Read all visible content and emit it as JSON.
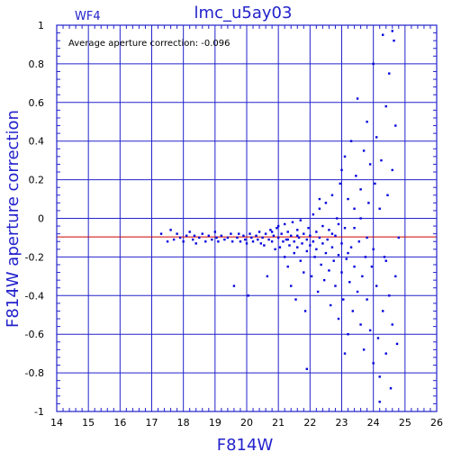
{
  "chart_data": {
    "type": "scatter",
    "title": "lmc_u5ay03",
    "subtitle": "WF4",
    "xlabel": "F814W",
    "ylabel": "F814W aperture correction",
    "annotation": "Average aperture correction:  -0.096",
    "xlim": [
      14,
      26
    ],
    "ylim": [
      -1,
      1
    ],
    "x_ticks": [
      "14",
      "15",
      "16",
      "17",
      "18",
      "19",
      "20",
      "21",
      "22",
      "23",
      "24",
      "25",
      "26"
    ],
    "y_ticks": [
      "1",
      "0.8",
      "0.6",
      "0.4",
      "0.2",
      "0",
      "-0.2",
      "-0.4",
      "-0.6",
      "-0.8",
      "-1"
    ],
    "grid": true,
    "reference_line": -0.096,
    "colors": {
      "axis": "#2222cc",
      "points": "#0000dd",
      "reference_line": "#cc0000",
      "text": "#000000"
    },
    "series": [
      {
        "points": [
          [
            17.3,
            -0.08
          ],
          [
            17.5,
            -0.12
          ],
          [
            17.6,
            -0.06
          ],
          [
            17.7,
            -0.11
          ],
          [
            17.8,
            -0.08
          ],
          [
            17.9,
            -0.1
          ],
          [
            18.0,
            -0.12
          ],
          [
            18.1,
            -0.09
          ],
          [
            18.2,
            -0.07
          ],
          [
            18.3,
            -0.11
          ],
          [
            18.35,
            -0.09
          ],
          [
            18.4,
            -0.13
          ],
          [
            18.5,
            -0.1
          ],
          [
            18.6,
            -0.08
          ],
          [
            18.7,
            -0.12
          ],
          [
            18.8,
            -0.09
          ],
          [
            18.9,
            -0.11
          ],
          [
            19.0,
            -0.07
          ],
          [
            19.05,
            -0.1
          ],
          [
            19.1,
            -0.12
          ],
          [
            19.2,
            -0.09
          ],
          [
            19.3,
            -0.11
          ],
          [
            19.4,
            -0.1
          ],
          [
            19.5,
            -0.08
          ],
          [
            19.55,
            -0.12
          ],
          [
            19.6,
            -0.35
          ],
          [
            19.7,
            -0.1
          ],
          [
            19.75,
            -0.08
          ],
          [
            19.8,
            -0.12
          ],
          [
            19.9,
            -0.09
          ],
          [
            19.95,
            -0.11
          ],
          [
            20.0,
            -0.13
          ],
          [
            20.05,
            -0.4
          ],
          [
            20.1,
            -0.08
          ],
          [
            20.15,
            -0.1
          ],
          [
            20.2,
            -0.12
          ],
          [
            20.3,
            -0.09
          ],
          [
            20.35,
            -0.11
          ],
          [
            20.4,
            -0.07
          ],
          [
            20.45,
            -0.13
          ],
          [
            20.5,
            -0.1
          ],
          [
            20.55,
            -0.14
          ],
          [
            20.6,
            -0.08
          ],
          [
            20.65,
            -0.3
          ],
          [
            20.7,
            -0.11
          ],
          [
            20.75,
            -0.06
          ],
          [
            20.8,
            -0.12
          ],
          [
            20.85,
            -0.09
          ],
          [
            20.9,
            -0.16
          ],
          [
            20.95,
            -0.05
          ],
          [
            21.0,
            -0.1
          ],
          [
            21.0,
            -0.04
          ],
          [
            21.05,
            -0.15
          ],
          [
            21.1,
            -0.08
          ],
          [
            21.15,
            -0.12
          ],
          [
            21.2,
            -0.2
          ],
          [
            21.2,
            -0.03
          ],
          [
            21.25,
            -0.11
          ],
          [
            21.3,
            -0.25
          ],
          [
            21.3,
            -0.07
          ],
          [
            21.35,
            -0.14
          ],
          [
            21.4,
            -0.09
          ],
          [
            21.4,
            -0.35
          ],
          [
            21.45,
            -0.02
          ],
          [
            21.5,
            -0.12
          ],
          [
            21.5,
            -0.18
          ],
          [
            21.55,
            -0.42
          ],
          [
            21.6,
            -0.06
          ],
          [
            21.6,
            -0.15
          ],
          [
            21.65,
            -0.1
          ],
          [
            21.7,
            -0.22
          ],
          [
            21.7,
            -0.01
          ],
          [
            21.75,
            -0.13
          ],
          [
            21.8,
            -0.08
          ],
          [
            21.8,
            -0.28
          ],
          [
            21.85,
            -0.48
          ],
          [
            21.9,
            -0.11
          ],
          [
            21.9,
            -0.17
          ],
          [
            21.95,
            -0.05
          ],
          [
            22.0,
            -0.14
          ],
          [
            22.0,
            -0.09
          ],
          [
            22.05,
            -0.3
          ],
          [
            22.1,
            -0.12
          ],
          [
            22.1,
            0.02
          ],
          [
            22.15,
            -0.2
          ],
          [
            22.2,
            -0.07
          ],
          [
            22.2,
            -0.16
          ],
          [
            22.25,
            -0.38
          ],
          [
            22.3,
            -0.1
          ],
          [
            22.3,
            0.05
          ],
          [
            22.35,
            -0.24
          ],
          [
            22.4,
            -0.13
          ],
          [
            22.4,
            -0.04
          ],
          [
            22.45,
            -0.32
          ],
          [
            22.5,
            -0.18
          ],
          [
            22.5,
            0.08
          ],
          [
            22.55,
            -0.11
          ],
          [
            22.6,
            -0.27
          ],
          [
            22.6,
            -0.06
          ],
          [
            22.65,
            -0.45
          ],
          [
            22.7,
            -0.15
          ],
          [
            22.7,
            0.12
          ],
          [
            22.75,
            -0.22
          ],
          [
            22.8,
            -0.09
          ],
          [
            22.8,
            -0.35
          ],
          [
            22.85,
            0.0
          ],
          [
            22.9,
            -0.19
          ],
          [
            22.9,
            -0.52
          ],
          [
            22.95,
            0.18
          ],
          [
            23.0,
            -0.13
          ],
          [
            23.0,
            -0.28
          ],
          [
            23.0,
            0.25
          ],
          [
            23.05,
            -0.42
          ],
          [
            23.1,
            -0.05
          ],
          [
            23.1,
            0.32
          ],
          [
            23.15,
            -0.21
          ],
          [
            23.2,
            -0.6
          ],
          [
            23.2,
            0.1
          ],
          [
            23.25,
            -0.33
          ],
          [
            23.3,
            -0.15
          ],
          [
            23.3,
            0.4
          ],
          [
            23.35,
            -0.48
          ],
          [
            23.4,
            0.05
          ],
          [
            23.4,
            -0.25
          ],
          [
            23.45,
            0.22
          ],
          [
            23.5,
            -0.38
          ],
          [
            23.5,
            0.62
          ],
          [
            23.55,
            -0.12
          ],
          [
            23.6,
            -0.55
          ],
          [
            23.6,
            0.15
          ],
          [
            23.65,
            -0.3
          ],
          [
            23.7,
            0.35
          ],
          [
            23.7,
            -0.68
          ],
          [
            23.75,
            -0.2
          ],
          [
            23.8,
            0.5
          ],
          [
            23.8,
            -0.42
          ],
          [
            23.85,
            0.08
          ],
          [
            23.9,
            -0.58
          ],
          [
            23.9,
            0.28
          ],
          [
            23.95,
            -0.25
          ],
          [
            24.0,
            0.8
          ],
          [
            24.0,
            -0.75
          ],
          [
            24.05,
            0.18
          ],
          [
            24.1,
            -0.35
          ],
          [
            24.1,
            0.42
          ],
          [
            24.15,
            -0.62
          ],
          [
            24.2,
            0.05
          ],
          [
            24.2,
            -0.82
          ],
          [
            24.25,
            0.3
          ],
          [
            24.3,
            -0.48
          ],
          [
            24.3,
            0.95
          ],
          [
            24.35,
            -0.2
          ],
          [
            24.4,
            0.58
          ],
          [
            24.4,
            -0.7
          ],
          [
            24.45,
            0.12
          ],
          [
            24.5,
            -0.4
          ],
          [
            24.5,
            0.75
          ],
          [
            24.55,
            -0.88
          ],
          [
            24.6,
            0.25
          ],
          [
            24.6,
            -0.55
          ],
          [
            24.65,
            0.92
          ],
          [
            24.7,
            -0.3
          ],
          [
            24.7,
            0.48
          ],
          [
            24.75,
            -0.65
          ],
          [
            24.2,
            -0.95
          ],
          [
            24.6,
            0.97
          ],
          [
            22.3,
            0.1
          ],
          [
            21.9,
            -0.78
          ],
          [
            23.1,
            -0.7
          ],
          [
            23.4,
            -0.05
          ],
          [
            22.7,
            -0.08
          ],
          [
            22.1,
            -0.12
          ],
          [
            21.6,
            -0.09
          ],
          [
            21.3,
            -0.11
          ],
          [
            20.8,
            -0.07
          ],
          [
            23.8,
            -0.1
          ],
          [
            24.0,
            -0.16
          ],
          [
            23.2,
            -0.18
          ],
          [
            22.9,
            -0.03
          ],
          [
            24.4,
            -0.22
          ],
          [
            23.6,
            0.0
          ],
          [
            24.8,
            -0.1
          ]
        ]
      }
    ]
  }
}
